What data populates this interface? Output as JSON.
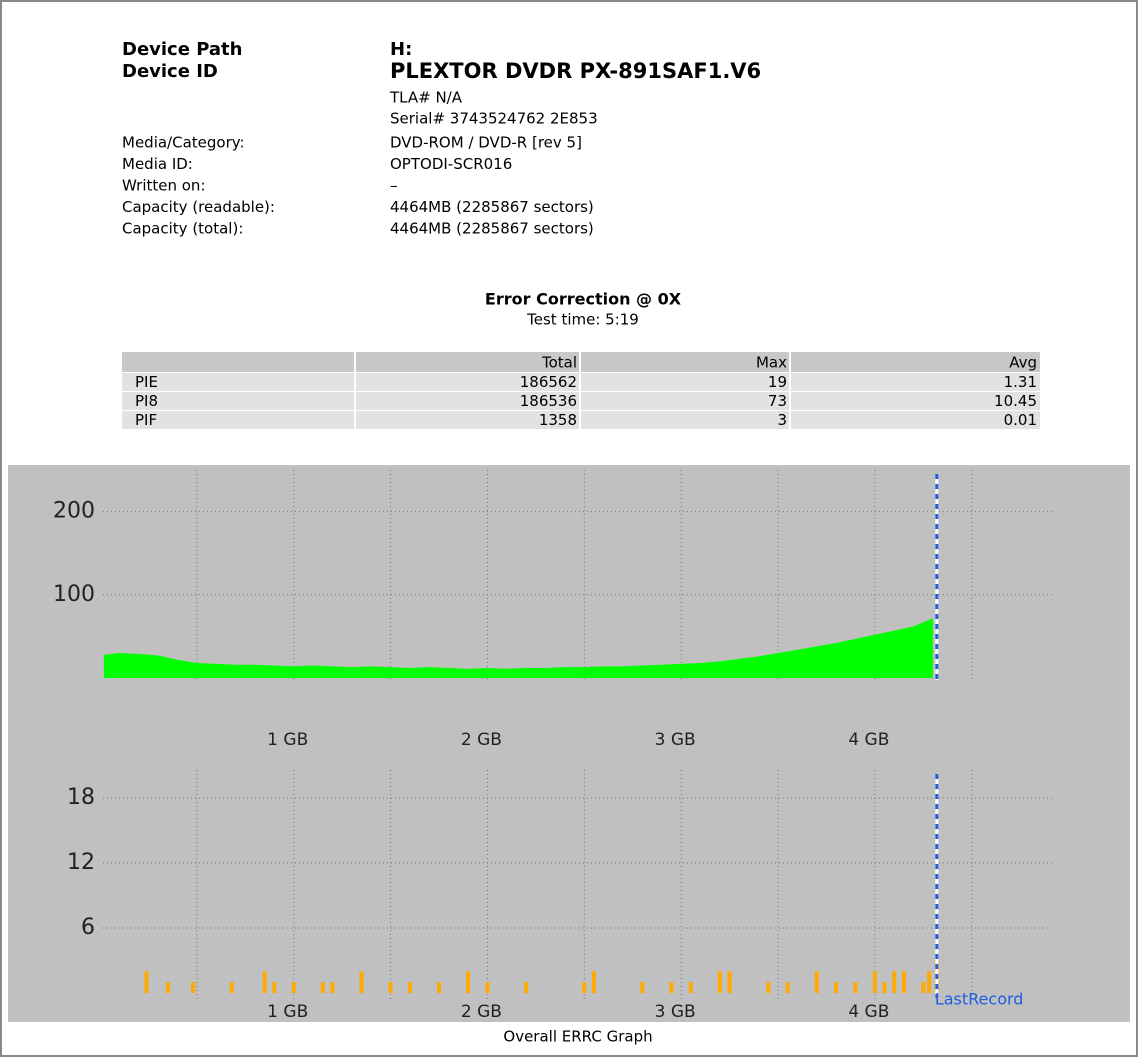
{
  "header": {
    "rows": [
      {
        "label": "Device Path",
        "value": "H:"
      },
      {
        "label": "Device ID",
        "value": "PLEXTOR DVDR PX-891SAF1.V6"
      }
    ],
    "extra": [
      "TLA# N/A",
      "Serial# 3743524762 2E853"
    ],
    "info": [
      {
        "label": "Media/Category:",
        "value": "DVD-ROM / DVD-R [rev 5]"
      },
      {
        "label": "Media ID:",
        "value": "OPTODI-SCR016"
      },
      {
        "label": "Written on:",
        "value": "–"
      },
      {
        "label": "Capacity (readable):",
        "value": "4464MB (2285867 sectors)"
      },
      {
        "label": "Capacity (total):",
        "value": "4464MB (2285867 sectors)"
      }
    ]
  },
  "summary": {
    "title": "Error Correction @ 0X",
    "subtitle": "Test time: 5:19"
  },
  "table": {
    "columns": [
      "Total",
      "Max",
      "Avg"
    ],
    "rows": [
      [
        "PIE",
        "186562",
        "19",
        "1.31"
      ],
      [
        "PI8",
        "186536",
        "73",
        "10.45"
      ],
      [
        "PIF",
        "1358",
        "3",
        "0.01"
      ]
    ]
  },
  "chart_data": [
    {
      "type": "area",
      "color": "#00ff00",
      "x": [
        0.02,
        0.1,
        0.2,
        0.3,
        0.4,
        0.5,
        0.6,
        0.7,
        0.8,
        0.9,
        1.0,
        1.1,
        1.2,
        1.3,
        1.4,
        1.5,
        1.6,
        1.7,
        1.8,
        1.9,
        2.0,
        2.1,
        2.2,
        2.3,
        2.4,
        2.5,
        2.6,
        2.7,
        2.8,
        2.9,
        3.0,
        3.1,
        3.2,
        3.3,
        3.4,
        3.5,
        3.6,
        3.7,
        3.8,
        3.9,
        4.0,
        4.1,
        4.2,
        4.3
      ],
      "values": [
        28,
        30,
        29,
        27,
        22,
        18,
        17,
        16,
        16,
        15,
        14,
        15,
        14,
        13,
        14,
        13,
        12,
        13,
        12,
        11,
        12,
        11,
        12,
        12,
        13,
        13,
        14,
        14,
        15,
        16,
        17,
        18,
        20,
        23,
        26,
        30,
        34,
        38,
        42,
        47,
        52,
        57,
        62,
        72
      ],
      "xlim": [
        0,
        4.93
      ],
      "ylim": [
        0,
        250
      ],
      "yticks": [
        100,
        200
      ],
      "xticks": [
        {
          "value": 1,
          "label": "1 GB"
        },
        {
          "value": 2,
          "label": "2 GB"
        },
        {
          "value": 3,
          "label": "3 GB"
        },
        {
          "value": 4,
          "label": "4 GB"
        }
      ],
      "xgrid": [
        0.5,
        1,
        1.5,
        2,
        2.5,
        3,
        3.5,
        4,
        4.5
      ],
      "last_record": 4.32
    },
    {
      "type": "bar",
      "color": "#ffaa00",
      "x": [
        0.24,
        0.35,
        0.48,
        0.68,
        0.85,
        0.9,
        1.0,
        1.15,
        1.2,
        1.35,
        1.5,
        1.6,
        1.75,
        1.9,
        2.0,
        2.2,
        2.5,
        2.55,
        2.8,
        2.95,
        3.05,
        3.2,
        3.25,
        3.45,
        3.55,
        3.7,
        3.8,
        3.9,
        4.0,
        4.05,
        4.1,
        4.15,
        4.25,
        4.28,
        4.32
      ],
      "values": [
        2,
        1,
        1,
        1,
        2,
        1,
        1,
        1,
        1,
        2,
        1,
        1,
        1,
        2,
        1,
        1,
        1,
        2,
        1,
        1,
        1,
        2,
        2,
        1,
        1,
        2,
        1,
        1,
        2,
        1,
        2,
        2,
        1,
        2,
        3
      ],
      "xlim": [
        0,
        4.93
      ],
      "ylim": [
        0,
        21
      ],
      "yticks": [
        6,
        12,
        18
      ],
      "xticks": [
        {
          "value": 1,
          "label": "1 GB"
        },
        {
          "value": 2,
          "label": "2 GB"
        },
        {
          "value": 3,
          "label": "3 GB"
        },
        {
          "value": 4,
          "label": "4 GB"
        }
      ],
      "xgrid": [
        0.5,
        1,
        1.5,
        2,
        2.5,
        3,
        3.5,
        4,
        4.5
      ],
      "last_record": 4.32,
      "last_record_label": "LastRecord",
      "caption": "Overall ERRC Graph"
    }
  ]
}
